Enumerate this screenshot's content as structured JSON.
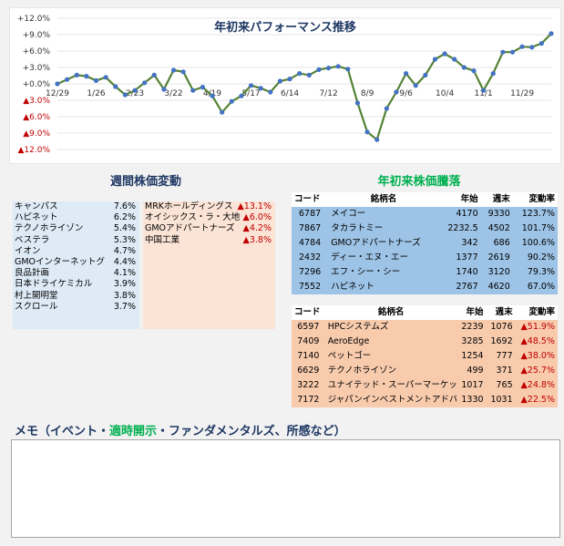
{
  "chart_data": {
    "type": "line",
    "title": "年初来パフォーマンス推移",
    "xlabel": "",
    "ylabel": "",
    "x_ticks": [
      "12/29",
      "1/26",
      "2/23",
      "3/22",
      "4/19",
      "5/17",
      "6/14",
      "7/12",
      "8/9",
      "9/6",
      "10/4",
      "11/1",
      "11/29"
    ],
    "y_ticks": [
      {
        "label": "+12.0%",
        "value": 12
      },
      {
        "label": "+9.0%",
        "value": 9
      },
      {
        "label": "+6.0%",
        "value": 6
      },
      {
        "label": "+3.0%",
        "value": 3
      },
      {
        "label": "+0.0%",
        "value": 0
      },
      {
        "label": "▲3.0%",
        "value": -3
      },
      {
        "label": "▲6.0%",
        "value": -6
      },
      {
        "label": "▲9.0%",
        "value": -9
      },
      {
        "label": "▲12.0%",
        "value": -12
      }
    ],
    "ylim": [
      -12,
      12
    ],
    "grid": true,
    "line_color": "#548235",
    "marker_color": "#4472c4",
    "values": [
      0,
      0.8,
      1.6,
      1.4,
      0.6,
      1.2,
      -0.5,
      -2.0,
      -1.2,
      0.2,
      1.6,
      -1.0,
      2.5,
      2.2,
      -1.2,
      -0.6,
      -2.2,
      -5.2,
      -3.2,
      -2.2,
      -0.3,
      -0.8,
      -1.5,
      0.5,
      0.9,
      1.9,
      1.6,
      2.6,
      2.9,
      3.2,
      2.7,
      -3.5,
      -8.8,
      -10.2,
      -4.5,
      -1.5,
      1.9,
      -0.3,
      1.6,
      4.5,
      5.5,
      4.5,
      3.0,
      2.4,
      -1.2,
      1.9,
      5.8,
      5.8,
      6.8,
      6.7,
      7.4,
      9.2
    ]
  },
  "weekly": {
    "title": "週間株価変動",
    "up": [
      {
        "name": "キャンパス",
        "value": "7.6%"
      },
      {
        "name": "ハピネット",
        "value": "6.2%"
      },
      {
        "name": "テクノホライゾン",
        "value": "5.4%"
      },
      {
        "name": "ベステラ",
        "value": "5.3%"
      },
      {
        "name": "イオン",
        "value": "4.7%"
      },
      {
        "name": "GMOインターネットグ",
        "value": "4.4%"
      },
      {
        "name": "良品計画",
        "value": "4.1%"
      },
      {
        "name": "日本ドライケミカル",
        "value": "3.9%"
      },
      {
        "name": "村上開明堂",
        "value": "3.8%"
      },
      {
        "name": "スクロール",
        "value": "3.7%"
      }
    ],
    "down": [
      {
        "name": "MRKホールディングス",
        "value": "▲13.1%"
      },
      {
        "name": "オイシックス・ラ・大地",
        "value": "▲6.0%"
      },
      {
        "name": "GMOアドパートナーズ",
        "value": "▲4.2%"
      },
      {
        "name": "中国工業",
        "value": "▲3.8%"
      }
    ]
  },
  "ytd": {
    "title": "年初来株価騰落",
    "headers": [
      "コード",
      "銘柄名",
      "年始",
      "週末",
      "変動率"
    ],
    "up": [
      [
        "6787",
        "メイコー",
        "4170",
        "9330",
        "123.7%"
      ],
      [
        "7867",
        "タカラトミー",
        "2232.5",
        "4502",
        "101.7%"
      ],
      [
        "4784",
        "GMOアドパートナーズ",
        "342",
        "686",
        "100.6%"
      ],
      [
        "2432",
        "ディー・エヌ・エー",
        "1377",
        "2619",
        "90.2%"
      ],
      [
        "7296",
        "エフ・シー・シー",
        "1740",
        "3120",
        "79.3%"
      ],
      [
        "7552",
        "ハピネット",
        "2767",
        "4620",
        "67.0%"
      ]
    ],
    "down": [
      [
        "6597",
        "HPCシステムズ",
        "2239",
        "1076",
        "▲51.9%"
      ],
      [
        "7409",
        "AeroEdge",
        "3285",
        "1692",
        "▲48.5%"
      ],
      [
        "7140",
        "ペットゴー",
        "1254",
        "777",
        "▲38.0%"
      ],
      [
        "6629",
        "テクノホライゾン",
        "499",
        "371",
        "▲25.7%"
      ],
      [
        "3222",
        "ユナイテッド・スーパーマーケット・ホ",
        "1017",
        "765",
        "▲24.8%"
      ],
      [
        "7172",
        "ジャパンインベストメントアドバイザ",
        "1330",
        "1031",
        "▲22.5%"
      ]
    ]
  },
  "memo": {
    "title_a": "メモ（イベント・",
    "title_b": "適時開示",
    "title_c": "・ファンダメンタルズ、所感など）"
  }
}
